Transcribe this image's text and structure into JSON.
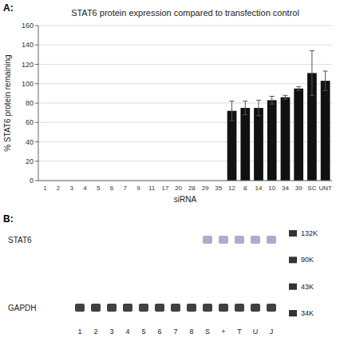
{
  "chart_data": [
    {
      "type": "bar",
      "title": "STAT6 protein expression compared to transfection control",
      "xlabel": "siRNA",
      "ylabel": "% STAT6 protein remaining",
      "annotations": [
        "A:"
      ],
      "categories": [
        "1",
        "2",
        "3",
        "4",
        "5",
        "6",
        "7",
        "9",
        "11",
        "17",
        "20",
        "28",
        "29",
        "35",
        "12",
        "8",
        "14",
        "10",
        "34",
        "39",
        "SC",
        "UNT"
      ],
      "values": [
        0,
        0,
        0,
        0,
        0,
        0,
        0,
        0,
        0,
        0,
        0,
        0,
        0,
        0,
        72,
        75,
        75,
        83,
        86,
        95,
        111,
        103
      ],
      "errors": [
        0,
        0,
        0,
        0,
        0,
        0,
        0,
        0,
        0,
        0,
        0,
        0,
        0,
        0,
        10,
        7,
        8,
        4,
        2,
        2,
        23,
        10
      ],
      "color": "#111111",
      "ylim": [
        0,
        160
      ],
      "yticks": [
        0,
        20,
        40,
        60,
        80,
        100,
        120,
        140,
        160
      ],
      "grid": true
    },
    {
      "type": "blot",
      "annotations": [
        "B:"
      ],
      "categories": [
        "1",
        "2",
        "3",
        "4",
        "5",
        "6",
        "7",
        "8",
        "S",
        "+",
        "T",
        "U",
        "J"
      ],
      "series": [
        {
          "name": "STAT6",
          "color": "#9999bb",
          "bands": [
            false,
            false,
            false,
            false,
            false,
            false,
            false,
            false,
            true,
            true,
            true,
            true,
            true
          ]
        },
        {
          "name": "GAPDH",
          "color": "#111111",
          "bands": [
            true,
            true,
            true,
            true,
            true,
            true,
            true,
            true,
            true,
            true,
            true,
            true,
            true
          ]
        }
      ],
      "marker_labels": [
        "132K",
        "90K",
        "43K",
        "34K"
      ],
      "marker_color": "#333333"
    }
  ]
}
